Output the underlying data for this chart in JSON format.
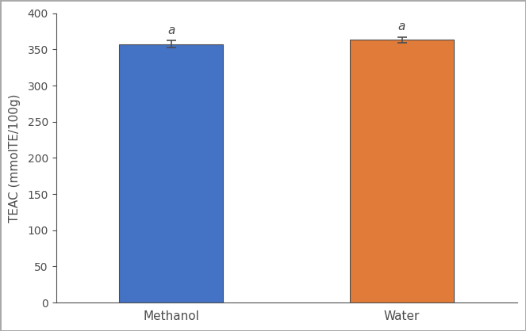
{
  "categories": [
    "Methanol",
    "Water"
  ],
  "values": [
    357,
    363
  ],
  "errors": [
    5,
    4
  ],
  "bar_colors": [
    "#4472C4",
    "#E07B39"
  ],
  "ylabel": "TEAC (mmolTE/100g)",
  "ylim": [
    0,
    400
  ],
  "yticks": [
    0,
    50,
    100,
    150,
    200,
    250,
    300,
    350,
    400
  ],
  "significance_labels": [
    "a",
    "a"
  ],
  "bar_width": 0.45,
  "background_color": "#ffffff",
  "edge_color": "#4d4d4d",
  "label_fontsize": 11,
  "tick_fontsize": 10,
  "sig_fontsize": 11
}
